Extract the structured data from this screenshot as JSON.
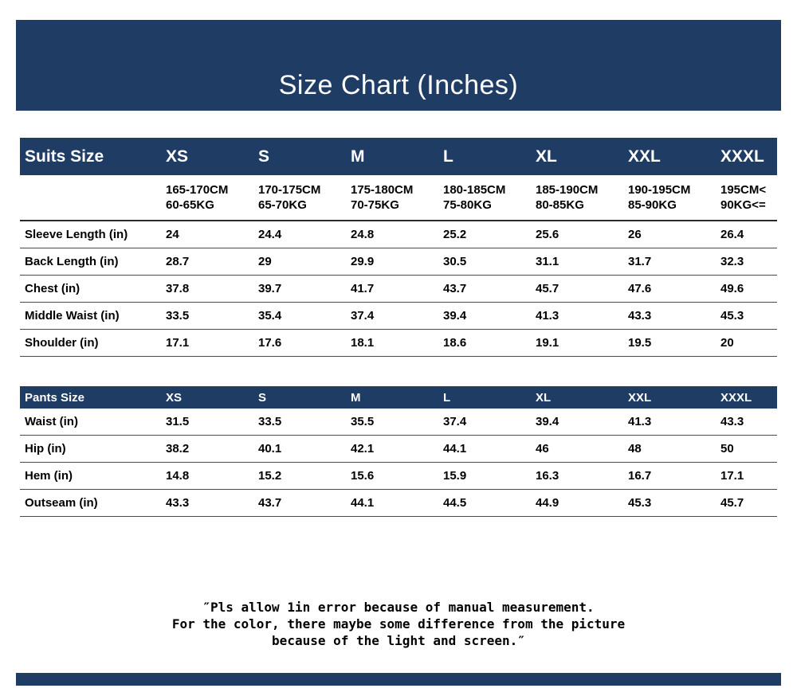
{
  "page": {
    "title": "Size Chart (Inches)",
    "note_lines": [
      "″Pls allow 1in error because of manual measurement.",
      "For the color, there maybe some difference from the picture",
      "because of the light and screen.″"
    ],
    "colors": {
      "header_navy": "#1e3c64",
      "text": "#000000",
      "divider": "#4a4a4a"
    }
  },
  "chart_data": [
    {
      "type": "table",
      "title": "Suits Size",
      "columns": [
        "XS",
        "S",
        "M",
        "L",
        "XL",
        "XXL",
        "XXXL"
      ],
      "subheader": [
        [
          "165-170CM",
          "60-65KG"
        ],
        [
          "170-175CM",
          "65-70KG"
        ],
        [
          "175-180CM",
          "70-75KG"
        ],
        [
          "180-185CM",
          "75-80KG"
        ],
        [
          "185-190CM",
          "80-85KG"
        ],
        [
          "190-195CM",
          "85-90KG"
        ],
        [
          "195CM<",
          "90KG<="
        ]
      ],
      "rows": [
        {
          "label": "Sleeve Length (in)",
          "values": [
            24,
            24.4,
            24.8,
            25.2,
            25.6,
            26,
            26.4
          ]
        },
        {
          "label": "Back Length (in)",
          "values": [
            28.7,
            29,
            29.9,
            30.5,
            31.1,
            31.7,
            32.3
          ]
        },
        {
          "label": "Chest (in)",
          "values": [
            37.8,
            39.7,
            41.7,
            43.7,
            45.7,
            47.6,
            49.6
          ]
        },
        {
          "label": "Middle Waist (in)",
          "values": [
            33.5,
            35.4,
            37.4,
            39.4,
            41.3,
            43.3,
            45.3
          ]
        },
        {
          "label": "Shoulder (in)",
          "values": [
            17.1,
            17.6,
            18.1,
            18.6,
            19.1,
            19.5,
            20
          ]
        }
      ]
    },
    {
      "type": "table",
      "title": "Pants Size",
      "columns": [
        "XS",
        "S",
        "M",
        "L",
        "XL",
        "XXL",
        "XXXL"
      ],
      "rows": [
        {
          "label": "Waist (in)",
          "values": [
            31.5,
            33.5,
            35.5,
            37.4,
            39.4,
            41.3,
            43.3
          ]
        },
        {
          "label": "Hip (in)",
          "values": [
            38.2,
            40.1,
            42.1,
            44.1,
            46,
            48,
            50
          ]
        },
        {
          "label": "Hem (in)",
          "values": [
            14.8,
            15.2,
            15.6,
            15.9,
            16.3,
            16.7,
            17.1
          ]
        },
        {
          "label": "Outseam (in)",
          "values": [
            43.3,
            43.7,
            44.1,
            44.5,
            44.9,
            45.3,
            45.7
          ]
        }
      ]
    }
  ]
}
